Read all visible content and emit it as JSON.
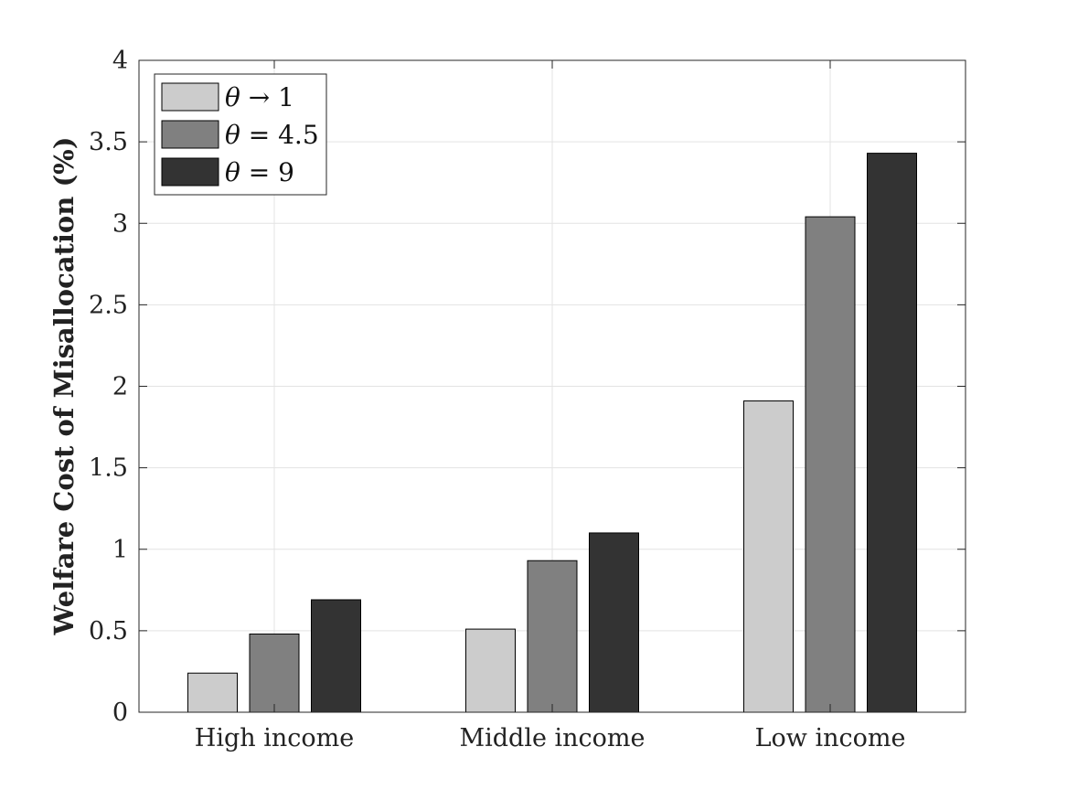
{
  "chart_data": {
    "type": "bar",
    "title": "",
    "xlabel": "",
    "ylabel": "Welfare Cost of Misallocation (%)",
    "categories": [
      "High income",
      "Middle income",
      "Low income"
    ],
    "series": [
      {
        "name": "θ → 1",
        "theta": "θ",
        "rel": " → 1",
        "color": "#cccccc",
        "values": [
          0.24,
          0.51,
          1.91
        ]
      },
      {
        "name": "θ = 4.5",
        "theta": "θ",
        "rel": " = 4.5",
        "color": "#808080",
        "values": [
          0.48,
          0.93,
          3.04
        ]
      },
      {
        "name": "θ = 9",
        "theta": "θ",
        "rel": " = 9",
        "color": "#333333",
        "values": [
          0.69,
          1.1,
          3.43
        ]
      }
    ],
    "ylim": [
      0,
      4
    ],
    "yticks": [
      0,
      0.5,
      1,
      1.5,
      2,
      2.5,
      3,
      3.5,
      4
    ],
    "ytick_labels": [
      "0",
      "0.5",
      "1",
      "1.5",
      "2",
      "2.5",
      "3",
      "3.5",
      "4"
    ],
    "grid": true,
    "legend_position": "top-left"
  }
}
